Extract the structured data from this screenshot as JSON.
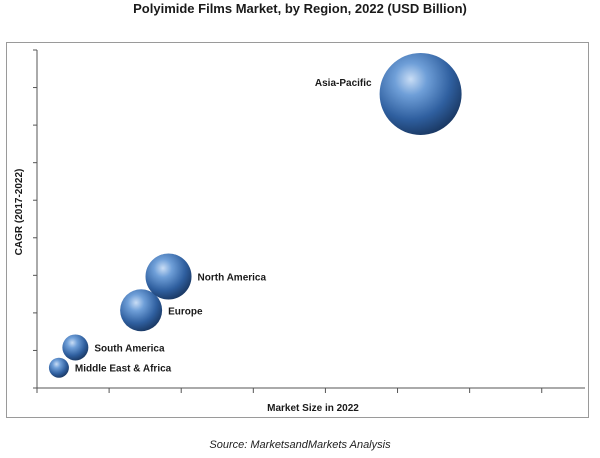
{
  "chart_data": {
    "type": "scatter",
    "title": "Polyimide Films Market, by Region, 2022 (USD Billion)",
    "xlabel": "Market Size in 2022",
    "ylabel": "CAGR (2017-2022)",
    "xlim": [
      0,
      10
    ],
    "ylim": [
      0,
      10
    ],
    "grid": false,
    "legend": "none",
    "points": [
      {
        "label": "Middle East & Africa",
        "x": 0.4,
        "y": 0.6,
        "size": 1.0
      },
      {
        "label": "South America",
        "x": 0.7,
        "y": 1.2,
        "size": 1.3
      },
      {
        "label": "Europe",
        "x": 1.9,
        "y": 2.3,
        "size": 2.1
      },
      {
        "label": "North America",
        "x": 2.4,
        "y": 3.3,
        "size": 2.3
      },
      {
        "label": "Asia-Pacific",
        "x": 7.0,
        "y": 8.7,
        "size": 4.1
      }
    ],
    "colors": {
      "bubble": "#3d6fb5",
      "axis": "#555555"
    }
  },
  "source_note": "Source: MarketsandMarkets Analysis"
}
